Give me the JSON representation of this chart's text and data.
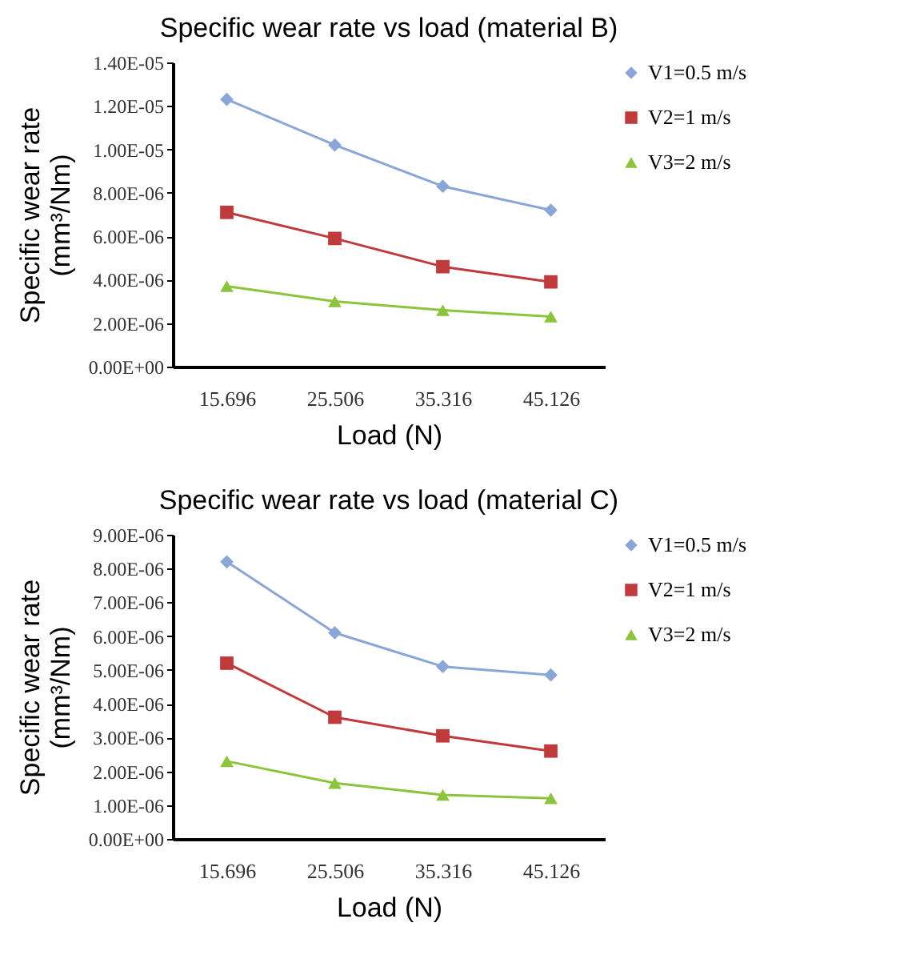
{
  "chart_data": [
    {
      "type": "line",
      "title": "Specific wear rate vs load (material B)",
      "xlabel": "Load (N)",
      "ylabel": "Specific wear rate (mm³/Nm)",
      "categories": [
        "15.696",
        "25.506",
        "35.316",
        "45.126"
      ],
      "series": [
        {
          "name": "V1=0.5 m/s",
          "color": "#8aa6d8",
          "marker": "diamond",
          "values": [
            1.23e-05,
            1.02e-05,
            8.3e-06,
            7.2e-06
          ]
        },
        {
          "name": "V2=1 m/s",
          "color": "#c0393b",
          "marker": "square",
          "values": [
            7.1e-06,
            5.9e-06,
            4.6e-06,
            3.9e-06
          ]
        },
        {
          "name": "V3=2 m/s",
          "color": "#8cc43c",
          "marker": "triangle",
          "values": [
            3.7e-06,
            3e-06,
            2.6e-06,
            2.3e-06
          ]
        }
      ],
      "ylim": [
        0,
        1.4e-05
      ],
      "yticks": [
        {
          "value": 0,
          "label": "0.00E+00"
        },
        {
          "value": 2e-06,
          "label": "2.00E-06"
        },
        {
          "value": 4e-06,
          "label": "4.00E-06"
        },
        {
          "value": 6e-06,
          "label": "6.00E-06"
        },
        {
          "value": 8e-06,
          "label": "8.00E-06"
        },
        {
          "value": 1e-05,
          "label": "1.00E-05"
        },
        {
          "value": 1.2e-05,
          "label": "1.20E-05"
        },
        {
          "value": 1.4e-05,
          "label": "1.40E-05"
        }
      ],
      "legend": "top right",
      "grid": false
    },
    {
      "type": "line",
      "title": "Specific wear rate vs load (material C)",
      "xlabel": "Load (N)",
      "ylabel": "Specific wear rate (mm³/Nm)",
      "categories": [
        "15.696",
        "25.506",
        "35.316",
        "45.126"
      ],
      "series": [
        {
          "name": "V1=0.5 m/s",
          "color": "#8aa6d8",
          "marker": "diamond",
          "values": [
            8.2e-06,
            6.1e-06,
            5.1e-06,
            4.85e-06
          ]
        },
        {
          "name": "V2=1 m/s",
          "color": "#c0393b",
          "marker": "square",
          "values": [
            5.2e-06,
            3.6e-06,
            3.05e-06,
            2.6e-06
          ]
        },
        {
          "name": "V3=2 m/s",
          "color": "#8cc43c",
          "marker": "triangle",
          "values": [
            2.3e-06,
            1.65e-06,
            1.3e-06,
            1.2e-06
          ]
        }
      ],
      "ylim": [
        0,
        9e-06
      ],
      "yticks": [
        {
          "value": 0,
          "label": "0.00E+00"
        },
        {
          "value": 1e-06,
          "label": "1.00E-06"
        },
        {
          "value": 2e-06,
          "label": "2.00E-06"
        },
        {
          "value": 3e-06,
          "label": "3.00E-06"
        },
        {
          "value": 4e-06,
          "label": "4.00E-06"
        },
        {
          "value": 5e-06,
          "label": "5.00E-06"
        },
        {
          "value": 6e-06,
          "label": "6.00E-06"
        },
        {
          "value": 7e-06,
          "label": "7.00E-06"
        },
        {
          "value": 8e-06,
          "label": "8.00E-06"
        },
        {
          "value": 9e-06,
          "label": "9.00E-06"
        }
      ],
      "legend": "right",
      "grid": false
    }
  ]
}
